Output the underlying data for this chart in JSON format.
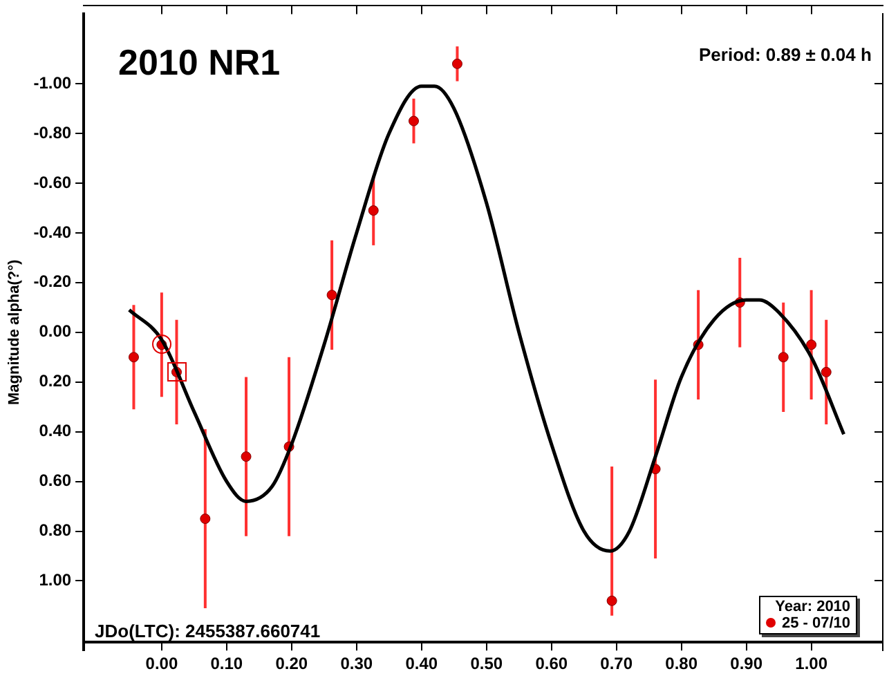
{
  "chart_data": {
    "type": "scatter",
    "title": "2010 NR1",
    "ylabel": "Magnitude alpha(?°)",
    "legend_title": "Year: 2010",
    "legend": "bottom right",
    "grid": false,
    "marker": "circle",
    "annotations": [
      "Period: 0.89 ± 0.04 h",
      "JDo(LTC): 2455387.660741"
    ],
    "xlim": [
      -0.12,
      1.11
    ],
    "xticks": [
      {
        "value": 0,
        "label": "0.00"
      },
      {
        "value": 0.1,
        "label": "0.10"
      },
      {
        "value": 0.2,
        "label": "0.20"
      },
      {
        "value": 0.3,
        "label": "0.30"
      },
      {
        "value": 0.4,
        "label": "0.40"
      },
      {
        "value": 0.5,
        "label": "0.50"
      },
      {
        "value": 0.6,
        "label": "0.60"
      },
      {
        "value": 0.7,
        "label": "0.70"
      },
      {
        "value": 0.8,
        "label": "0.80"
      },
      {
        "value": 0.9,
        "label": "0.90"
      },
      {
        "value": 1,
        "label": "1.00"
      }
    ],
    "ylim": [
      1.28,
      -1.28
    ],
    "yticks": [
      {
        "value": -1,
        "label": "-1.00"
      },
      {
        "value": -0.8,
        "label": "-0.80"
      },
      {
        "value": -0.6,
        "label": "-0.60"
      },
      {
        "value": -0.4,
        "label": "-0.40"
      },
      {
        "value": -0.2,
        "label": "-0.20"
      },
      {
        "value": 0,
        "label": "0.00"
      },
      {
        "value": 0.2,
        "label": "0.20"
      },
      {
        "value": 0.4,
        "label": "0.40"
      },
      {
        "value": 0.6,
        "label": "0.60"
      },
      {
        "value": 0.8,
        "label": "0.80"
      },
      {
        "value": 1,
        "label": "1.00"
      }
    ],
    "series": [
      {
        "type": "line",
        "color": "#000000",
        "marker": "none",
        "x": [
          -0.05,
          0,
          0.05,
          0.1,
          0.13,
          0.17,
          0.2,
          0.25,
          0.3,
          0.35,
          0.4,
          0.42,
          0.45,
          0.5,
          0.55,
          0.6,
          0.65,
          0.69,
          0.72,
          0.76,
          0.8,
          0.85,
          0.9,
          0.92,
          0.95,
          1,
          1.05
        ],
        "values": [
          -0.09,
          0.03,
          0.32,
          0.6,
          0.68,
          0.62,
          0.45,
          0.05,
          -0.4,
          -0.8,
          -0.99,
          -0.99,
          -0.9,
          -0.52,
          0,
          0.45,
          0.8,
          0.88,
          0.8,
          0.5,
          0.18,
          -0.05,
          -0.13,
          -0.13,
          -0.08,
          0.1,
          0.41
        ]
      },
      {
        "name": "25 - 07/10",
        "color": "#e00000",
        "x": [
          -0.043,
          0,
          0.023,
          0.067,
          0.13,
          0.196,
          0.262,
          0.326,
          0.388,
          0.455,
          0.693,
          0.76,
          0.826,
          0.89,
          0.957,
          1,
          1.023
        ],
        "values": [
          0.1,
          0.05,
          0.16,
          0.75,
          0.5,
          0.46,
          -0.15,
          -0.49,
          -0.85,
          -1.08,
          1.08,
          0.55,
          0.05,
          -0.12,
          0.1,
          0.05,
          0.16
        ],
        "errors": [
          0.21,
          0.21,
          0.21,
          0.36,
          0.32,
          0.36,
          0.22,
          0.14,
          0.09,
          0.07,
          [
            0.54,
            1.14
          ],
          0.36,
          0.22,
          0.18,
          0.22,
          0.22,
          0.21
        ]
      }
    ]
  }
}
